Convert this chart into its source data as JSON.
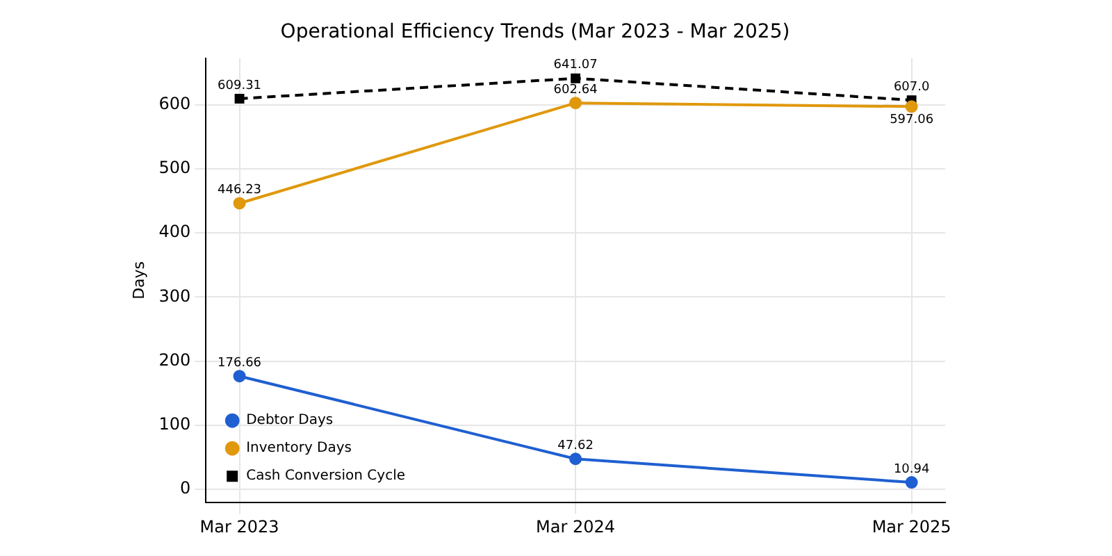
{
  "chart_data": {
    "type": "line",
    "title": "Operational Efficiency Trends (Mar 2023 - Mar 2025)",
    "ylabel": "Days",
    "categories": [
      "Mar 2023",
      "Mar 2024",
      "Mar 2025"
    ],
    "series": [
      {
        "name": "Debtor Days",
        "color": "#1f5fd1",
        "values": [
          176.66,
          47.62,
          10.94
        ],
        "value_labels": [
          "176.66",
          "47.62",
          "10.94"
        ],
        "marker": "circle",
        "line_style": "solid"
      },
      {
        "name": "Inventory Days",
        "color": "#e0980c",
        "values": [
          446.23,
          602.64,
          597.06
        ],
        "value_labels": [
          "446.23",
          "602.64",
          "597.06"
        ],
        "marker": "circle",
        "line_style": "solid"
      },
      {
        "name": "Cash Conversion Cycle",
        "color": "#000000",
        "values": [
          609.31,
          641.07,
          607.0
        ],
        "value_labels": [
          "609.31",
          "641.07",
          "607.0"
        ],
        "marker": "square",
        "line_style": "dashed"
      }
    ],
    "ylim": [
      -20.6,
      672.6
    ],
    "yticks": [
      0,
      100,
      200,
      300,
      400,
      500,
      600
    ],
    "grid": true,
    "legend": "bottom left"
  }
}
